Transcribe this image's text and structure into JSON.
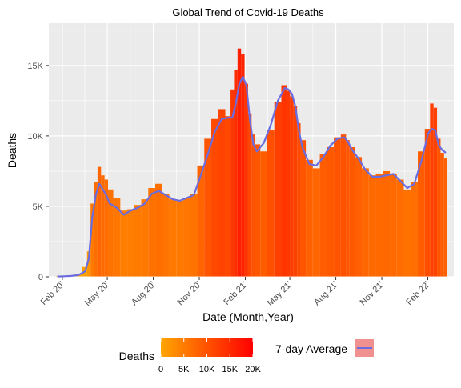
{
  "chart_data": {
    "type": "bar",
    "title": "Global Trend of Covid-19 Deaths",
    "xlabel": "Date (Month,Year)",
    "ylabel": "Deaths",
    "ylim": [
      0,
      18000
    ],
    "y_ticks": [
      {
        "value": 0,
        "label": "0"
      },
      {
        "value": 5000,
        "label": "5K"
      },
      {
        "value": 10000,
        "label": "10K"
      },
      {
        "value": 15000,
        "label": "15K"
      }
    ],
    "x_ticks": [
      {
        "date": "2020-02-01",
        "label": "Feb 20'"
      },
      {
        "date": "2020-05-01",
        "label": "May 20'"
      },
      {
        "date": "2020-08-01",
        "label": "Aug 20'"
      },
      {
        "date": "2020-11-01",
        "label": "Nov 20'"
      },
      {
        "date": "2021-02-01",
        "label": "Feb 21'"
      },
      {
        "date": "2021-05-01",
        "label": "May 21'"
      },
      {
        "date": "2021-08-01",
        "label": "Aug 21'"
      },
      {
        "date": "2021-11-01",
        "label": "Nov 21'"
      },
      {
        "date": "2022-02-01",
        "label": "Feb 22'"
      }
    ],
    "xlim": [
      "2020-01-05",
      "2022-03-25"
    ],
    "grid": true,
    "legend_position": "bottom",
    "color_scale": {
      "title": "Deaths",
      "low_color": "#FFA500",
      "high_color": "#FF0000",
      "range": [
        0,
        20000
      ],
      "tick_labels": [
        "0",
        "5K",
        "10K",
        "15K",
        "20K"
      ]
    },
    "series": [
      {
        "name": "Deaths",
        "type": "bar",
        "x": [
          "2020-01-22",
          "2020-02-05",
          "2020-02-19",
          "2020-03-04",
          "2020-03-18",
          "2020-03-25",
          "2020-04-01",
          "2020-04-08",
          "2020-04-15",
          "2020-04-22",
          "2020-04-29",
          "2020-05-06",
          "2020-05-20",
          "2020-06-03",
          "2020-06-17",
          "2020-07-01",
          "2020-07-15",
          "2020-07-29",
          "2020-08-12",
          "2020-08-26",
          "2020-09-09",
          "2020-09-23",
          "2020-10-07",
          "2020-10-21",
          "2020-11-04",
          "2020-11-18",
          "2020-12-02",
          "2020-12-16",
          "2020-12-30",
          "2021-01-06",
          "2021-01-13",
          "2021-01-20",
          "2021-01-27",
          "2021-02-03",
          "2021-02-10",
          "2021-02-17",
          "2021-02-24",
          "2021-03-10",
          "2021-03-24",
          "2021-04-07",
          "2021-04-21",
          "2021-04-28",
          "2021-05-05",
          "2021-05-12",
          "2021-05-19",
          "2021-05-26",
          "2021-06-09",
          "2021-06-23",
          "2021-07-07",
          "2021-07-21",
          "2021-08-04",
          "2021-08-18",
          "2021-08-25",
          "2021-09-01",
          "2021-09-15",
          "2021-09-29",
          "2021-10-13",
          "2021-10-27",
          "2021-11-10",
          "2021-11-24",
          "2021-12-08",
          "2021-12-22",
          "2022-01-05",
          "2022-01-19",
          "2022-02-02",
          "2022-02-09",
          "2022-02-16",
          "2022-02-23",
          "2022-03-02",
          "2022-03-09"
        ],
        "values": [
          50,
          80,
          100,
          200,
          700,
          1800,
          5200,
          6700,
          7800,
          7200,
          6900,
          6200,
          5600,
          4700,
          4800,
          5100,
          5500,
          6300,
          6600,
          5900,
          5500,
          5400,
          5600,
          5900,
          7900,
          9800,
          11200,
          11900,
          11400,
          13300,
          14700,
          16200,
          15800,
          13700,
          11600,
          10100,
          9400,
          8900,
          10400,
          12400,
          13600,
          13200,
          12800,
          12100,
          10900,
          9700,
          8300,
          7700,
          8700,
          9200,
          9900,
          10100,
          9700,
          9200,
          8500,
          7700,
          7200,
          7300,
          7500,
          7300,
          6900,
          6200,
          6700,
          8900,
          10500,
          12300,
          12000,
          9800,
          8800,
          8400
        ]
      },
      {
        "name": "7-day Average",
        "type": "line",
        "color": "#6A6CE0",
        "x": [
          "2020-01-22",
          "2020-02-05",
          "2020-02-19",
          "2020-03-04",
          "2020-03-18",
          "2020-03-25",
          "2020-04-01",
          "2020-04-08",
          "2020-04-15",
          "2020-04-22",
          "2020-04-29",
          "2020-05-06",
          "2020-05-20",
          "2020-06-03",
          "2020-06-17",
          "2020-07-01",
          "2020-07-15",
          "2020-07-29",
          "2020-08-12",
          "2020-08-26",
          "2020-09-09",
          "2020-09-23",
          "2020-10-07",
          "2020-10-21",
          "2020-11-04",
          "2020-11-18",
          "2020-12-02",
          "2020-12-16",
          "2020-12-30",
          "2021-01-06",
          "2021-01-13",
          "2021-01-20",
          "2021-01-27",
          "2021-02-03",
          "2021-02-10",
          "2021-02-17",
          "2021-02-24",
          "2021-03-10",
          "2021-03-24",
          "2021-04-07",
          "2021-04-21",
          "2021-04-28",
          "2021-05-05",
          "2021-05-12",
          "2021-05-19",
          "2021-05-26",
          "2021-06-09",
          "2021-06-23",
          "2021-07-07",
          "2021-07-21",
          "2021-08-04",
          "2021-08-18",
          "2021-08-25",
          "2021-09-01",
          "2021-09-15",
          "2021-09-29",
          "2021-10-13",
          "2021-10-27",
          "2021-11-10",
          "2021-11-24",
          "2021-12-08",
          "2021-12-22",
          "2022-01-05",
          "2022-01-19",
          "2022-02-02",
          "2022-02-09",
          "2022-02-16",
          "2022-02-23",
          "2022-03-02",
          "2022-03-09"
        ],
        "values": [
          20,
          40,
          60,
          120,
          400,
          1300,
          4200,
          5800,
          6600,
          6200,
          5800,
          5200,
          4900,
          4400,
          4700,
          4900,
          5200,
          5900,
          6100,
          5800,
          5500,
          5400,
          5600,
          5800,
          7200,
          8700,
          10300,
          11200,
          11300,
          11300,
          12300,
          13700,
          14200,
          13600,
          11200,
          9400,
          8900,
          9500,
          10800,
          12500,
          13400,
          13300,
          13000,
          12100,
          10400,
          9200,
          8000,
          7900,
          8500,
          9300,
          9800,
          9900,
          9600,
          9100,
          8400,
          7600,
          7100,
          7100,
          7200,
          7300,
          6800,
          6300,
          6600,
          8200,
          10200,
          10500,
          10400,
          9300,
          9000,
          8800
        ]
      }
    ]
  }
}
